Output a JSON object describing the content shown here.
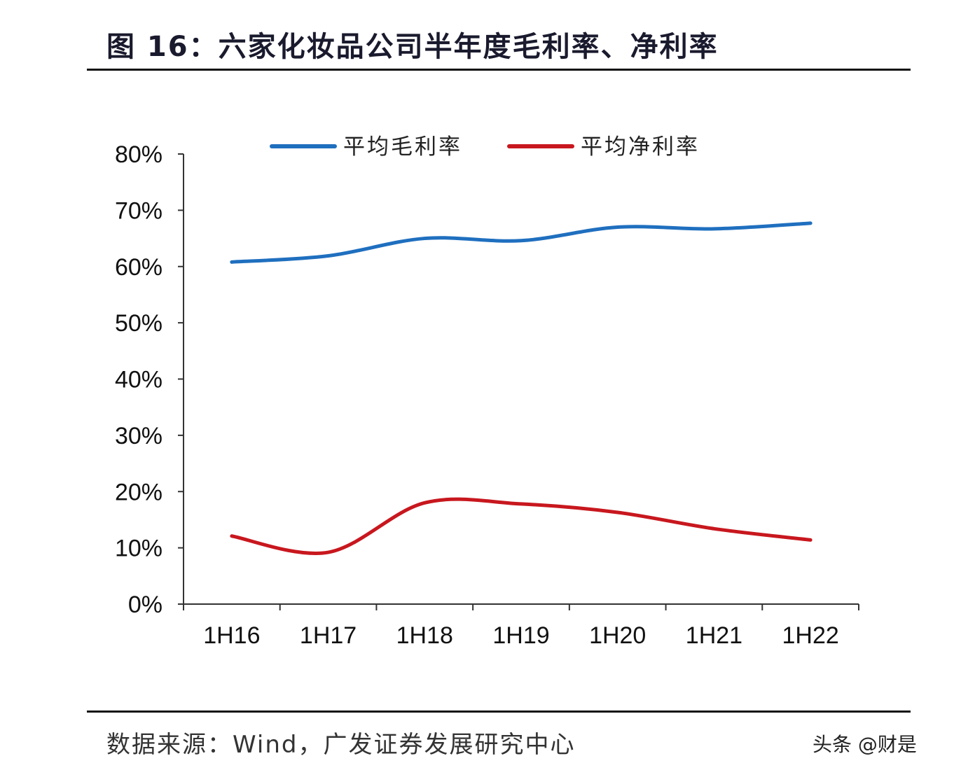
{
  "title": "图 16：六家化妆品公司半年度毛利率、净利率",
  "source": "数据来源：Wind，广发证券发展研究中心",
  "watermark": "头条 @财是",
  "chart_data": {
    "type": "line",
    "title": "图 16：六家化妆品公司半年度毛利率、净利率",
    "categories": [
      "1H16",
      "1H17",
      "1H18",
      "1H19",
      "1H20",
      "1H21",
      "1H22"
    ],
    "series": [
      {
        "name": "平均毛利率",
        "color": "#1f6fbf",
        "values": [
          60.8,
          61.9,
          65.0,
          64.6,
          67.0,
          66.7,
          67.7
        ]
      },
      {
        "name": "平均净利率",
        "color": "#c8171e",
        "values": [
          12.1,
          9.2,
          18.0,
          17.8,
          16.3,
          13.4,
          11.4
        ]
      }
    ],
    "yticks": [
      "0%",
      "10%",
      "20%",
      "30%",
      "40%",
      "50%",
      "60%",
      "70%",
      "80%"
    ],
    "ylim": [
      0,
      80
    ],
    "yunit": "%",
    "grid": false,
    "legend": "top"
  }
}
